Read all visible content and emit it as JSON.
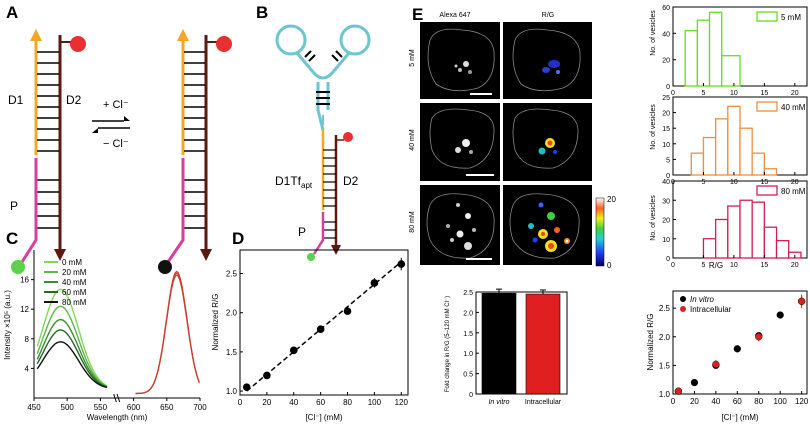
{
  "panel_labels": {
    "A": "A",
    "B": "B",
    "C": "C",
    "D": "D",
    "E": "E"
  },
  "panel_a": {
    "strand_d1": "D1",
    "strand_d2": "D2",
    "strand_p": "P",
    "forward": "+ Cl⁻",
    "reverse": "− Cl⁻"
  },
  "panel_b": {
    "strand_d1tf": "D1Tf",
    "strand_d1tf_sub": "apt",
    "strand_d2": "D2",
    "strand_p": "P"
  },
  "panel_e_images": {
    "col_alexa": "Alexa 647",
    "col_rg": "R/G",
    "row_labels": [
      "5 mM",
      "40 mM",
      "80 mM"
    ],
    "colorbar_max": "20",
    "colorbar_min": "0"
  },
  "colors": {
    "d1_orange": "#f5a623",
    "d2_brown": "#5a1a10",
    "p_magenta": "#d6409b",
    "aptamer_cyan": "#6cc5cf",
    "red_fluor": "#e83030",
    "green_fluor": "#5cd24a",
    "hist_green": "#66dd22",
    "hist_orange": "#e89040",
    "hist_crimson": "#d02050",
    "bar_black": "#000000",
    "bar_red": "#e02020"
  },
  "chart_data": [
    {
      "id": "C",
      "type": "line",
      "title": "",
      "xlabel": "Wavelength (nm)",
      "ylabel": "Intensity ×10⁵ (a.u.)",
      "xlim": [
        450,
        700
      ],
      "ylim": [
        0,
        20
      ],
      "x_ticks": [
        "450",
        "500",
        "550",
        "600",
        "650",
        "700"
      ],
      "y_ticks": [
        "4",
        "8",
        "12",
        "16"
      ],
      "legend": [
        "0 mM",
        "20 mM",
        "40 mM",
        "60 mM",
        "80 mM"
      ],
      "legend_colors": [
        "#7ed957",
        "#5cb848",
        "#3e8a35",
        "#236b23",
        "#111111"
      ],
      "series_green_peak": {
        "x": 490,
        "values": [
          13.5,
          11.2,
          9.4,
          8.0,
          6.4
        ]
      },
      "series_red_peak": {
        "x": 665,
        "value": 16.5,
        "color": "#c84030"
      }
    },
    {
      "id": "D",
      "type": "scatter",
      "xlabel": "[Cl⁻] (mM)",
      "ylabel": "Normalized R/G",
      "xlim": [
        0,
        125
      ],
      "ylim": [
        0.95,
        2.8
      ],
      "x_ticks": [
        0,
        20,
        40,
        60,
        80,
        100,
        120
      ],
      "y_ticks": [
        "1.0",
        "1.5",
        "2.0",
        "2.5"
      ],
      "x": [
        5,
        20,
        40,
        60,
        80,
        100,
        120
      ],
      "y": [
        1.05,
        1.2,
        1.52,
        1.79,
        2.02,
        2.38,
        2.62
      ],
      "err": [
        0.02,
        0.03,
        0.03,
        0.03,
        0.03,
        0.06,
        0.08
      ],
      "fit": [
        [
          5,
          1.0
        ],
        [
          120,
          2.65
        ]
      ]
    },
    {
      "id": "E-bar",
      "type": "bar",
      "ylabel": "Fold change in R/G (5–120 mM Cl⁻)",
      "ylim": [
        0,
        2.5
      ],
      "y_ticks": [
        "0",
        "0.5",
        "1.0",
        "1.5",
        "2.0",
        "2.5"
      ],
      "categories": [
        "In vitro",
        "Intracellular"
      ],
      "values": [
        2.47,
        2.45
      ],
      "err": [
        0.1,
        0.1
      ]
    },
    {
      "id": "E-hist",
      "type": "bar",
      "xlabel": "R/G",
      "ylabel": "No. of vesicles",
      "xlim": [
        0,
        22
      ],
      "x_ticks": [
        0,
        5,
        10,
        15,
        20
      ],
      "panels": [
        {
          "legend": "5 mM",
          "color": "#66dd22",
          "ylim": [
            0,
            60
          ],
          "y_ticks": [
            0,
            20,
            40,
            60
          ],
          "bins": [
            [
              2,
              4,
              42
            ],
            [
              4,
              6,
              50
            ],
            [
              6,
              8,
              56
            ],
            [
              8,
              11,
              23
            ]
          ]
        },
        {
          "legend": "40 mM",
          "color": "#e89040",
          "ylim": [
            0,
            25
          ],
          "y_ticks": [
            0,
            5,
            10,
            15,
            20,
            25
          ],
          "bins": [
            [
              3,
              5,
              7
            ],
            [
              5,
              7,
              12
            ],
            [
              7,
              9,
              18
            ],
            [
              9,
              11,
              22
            ],
            [
              11,
              13,
              15
            ],
            [
              13,
              15,
              7
            ],
            [
              15,
              17,
              2
            ]
          ]
        },
        {
          "legend": "80 mM",
          "color": "#d02050",
          "ylim": [
            0,
            40
          ],
          "y_ticks": [
            0,
            10,
            20,
            30,
            40
          ],
          "bins": [
            [
              5,
              7,
              10
            ],
            [
              7,
              9,
              20
            ],
            [
              9,
              11,
              27
            ],
            [
              11,
              13,
              30
            ],
            [
              13,
              15,
              29
            ],
            [
              15,
              17,
              16
            ],
            [
              17,
              19,
              9
            ],
            [
              19,
              21,
              3
            ]
          ]
        }
      ]
    },
    {
      "id": "E-scatter",
      "type": "scatter",
      "xlabel": "[Cl⁻] (mM)",
      "ylabel": "Normalized R/G",
      "xlim": [
        0,
        125
      ],
      "ylim": [
        1.0,
        2.8
      ],
      "x_ticks": [
        0,
        20,
        40,
        60,
        80,
        100,
        120
      ],
      "y_ticks": [
        "1.0",
        "1.5",
        "2.0",
        "2.5"
      ],
      "legend": [
        "In vitro",
        "Intracellular"
      ],
      "series": [
        {
          "name": "In vitro",
          "color": "#000000",
          "x": [
            5,
            20,
            40,
            60,
            80,
            100,
            120
          ],
          "y": [
            1.05,
            1.2,
            1.5,
            1.79,
            2.02,
            2.38,
            2.62
          ],
          "err": [
            0.02,
            0.03,
            0.03,
            0.03,
            0.03,
            0.06,
            0.08
          ]
        },
        {
          "name": "Intracellular",
          "color": "#e02020",
          "x": [
            5,
            40,
            80,
            120
          ],
          "y": [
            1.05,
            1.52,
            2.0,
            2.62
          ],
          "err": [
            0.03,
            0.07,
            0.08,
            0.12
          ]
        }
      ]
    }
  ]
}
